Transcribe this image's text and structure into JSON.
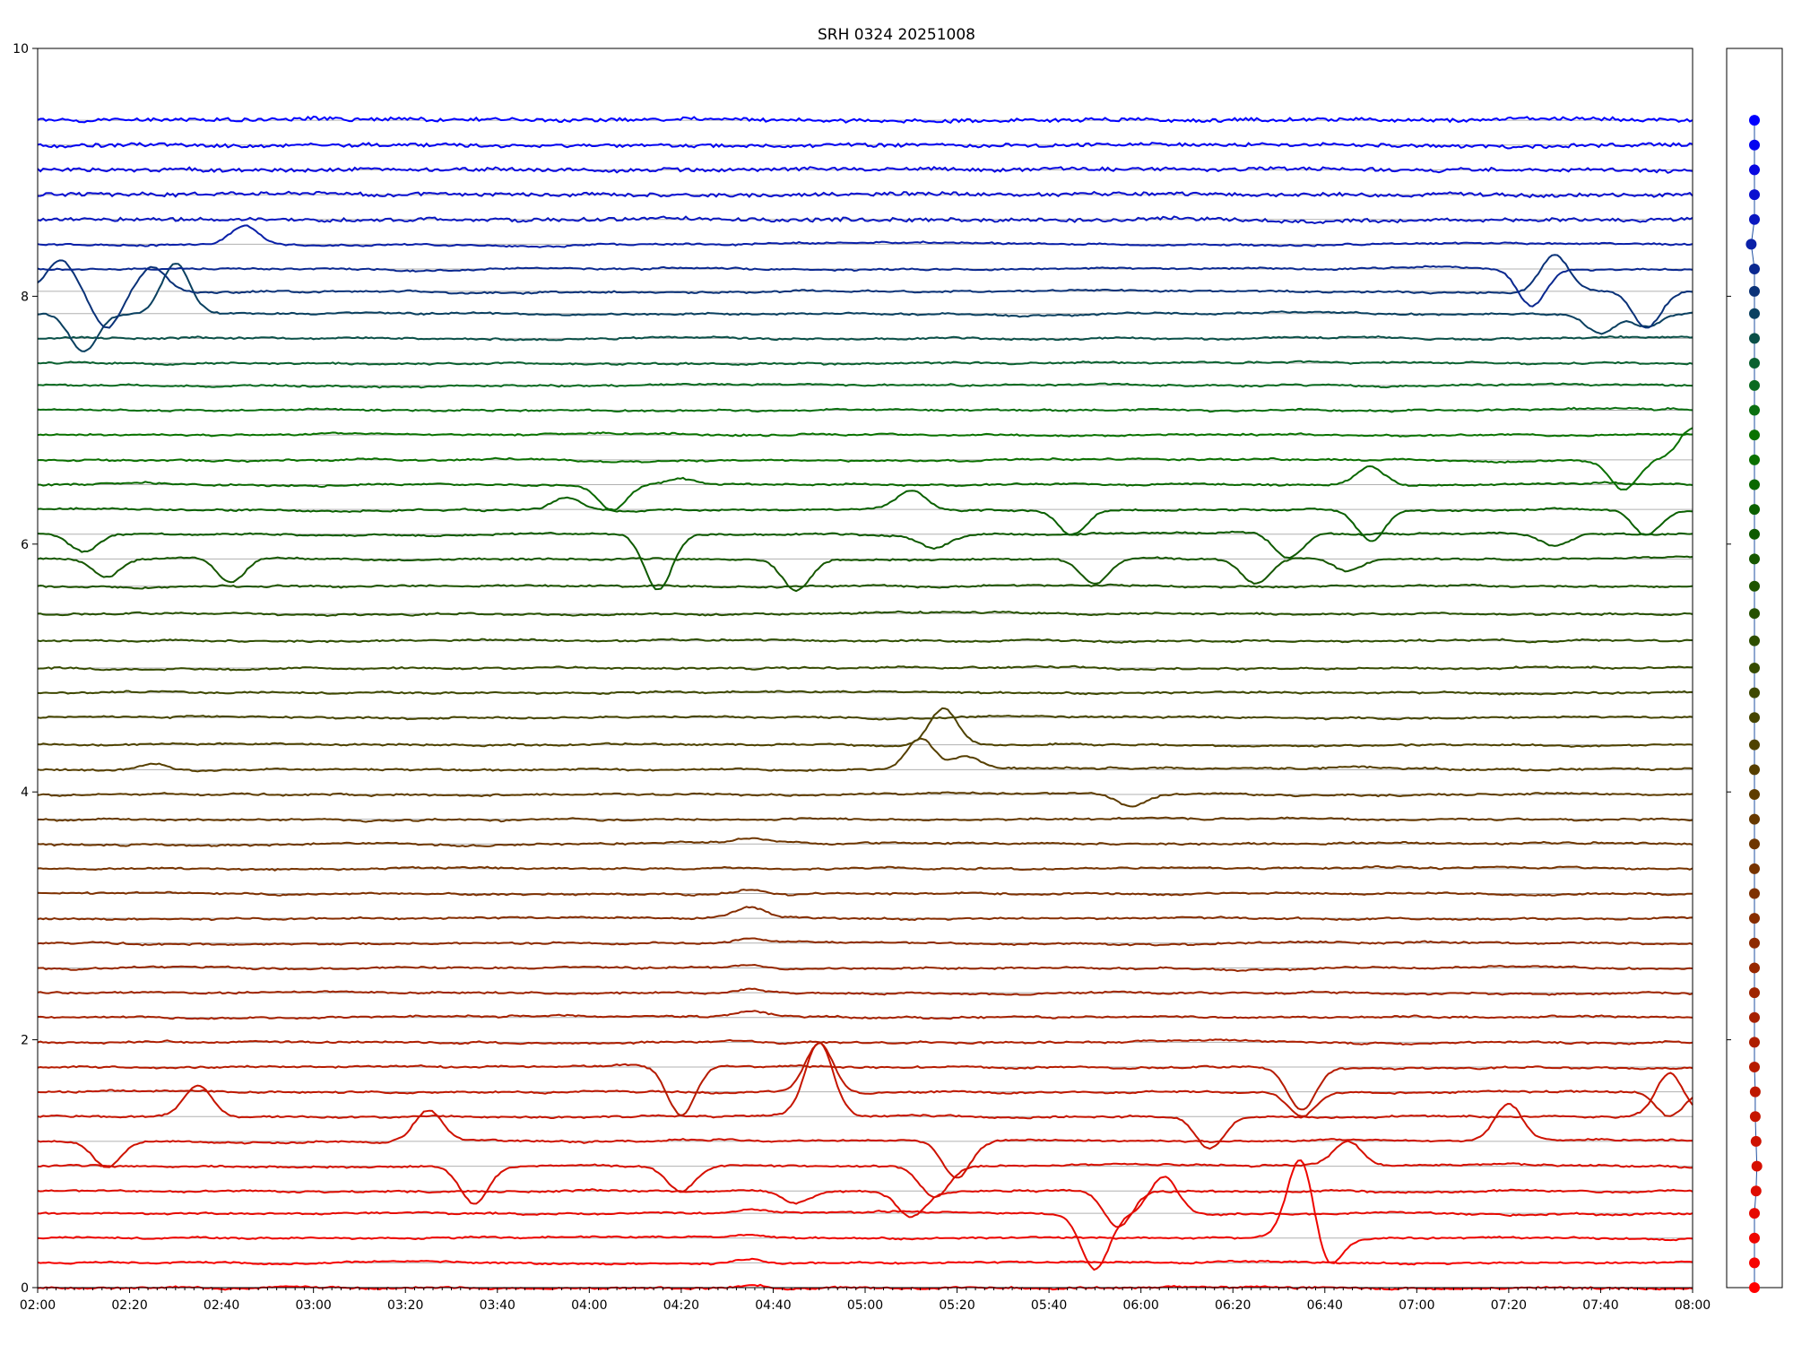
{
  "chart_data": {
    "type": "line",
    "title": "SRH 0324 20251008",
    "xlabel": "",
    "ylabel": "",
    "xlim": [
      "02:00",
      "08:00"
    ],
    "ylim": [
      0,
      10
    ],
    "x_tick_labels": [
      "02:00",
      "02:20",
      "02:40",
      "03:00",
      "03:20",
      "03:40",
      "04:00",
      "04:20",
      "04:40",
      "05:00",
      "05:20",
      "05:40",
      "06:00",
      "06:20",
      "06:40",
      "07:00",
      "07:20",
      "07:40",
      "08:00"
    ],
    "y_tick_labels": [
      "0",
      "2",
      "4",
      "6",
      "8",
      "10"
    ],
    "y_tick_values": [
      0,
      2,
      4,
      6,
      8,
      10
    ],
    "grid": "horizontal lines at each series baseline",
    "legend": "none",
    "series_count": 48,
    "series_spacing": 0.2,
    "side_panel": "colored dot per series at its baseline offset, connected by a thin line",
    "color_start": "#ff0000",
    "color_mid": "#008000",
    "color_end": "#0000ff",
    "series": [
      {
        "index": 0,
        "baseline": 0.0,
        "color": "#ff0000",
        "panel_offset": 0.0,
        "events": [
          {
            "t": "04:35",
            "amp": 0.02
          }
        ]
      },
      {
        "index": 1,
        "baseline": 0.2,
        "color": "#f60300",
        "panel_offset": 0.0,
        "events": [
          {
            "t": "04:35",
            "amp": 0.03
          }
        ]
      },
      {
        "index": 2,
        "baseline": 0.4,
        "color": "#ee0600",
        "panel_offset": 0.0,
        "events": [
          {
            "t": "04:35",
            "amp": 0.02
          },
          {
            "t": "06:35",
            "amp": 0.7
          },
          {
            "t": "06:40",
            "amp": -0.3
          }
        ]
      },
      {
        "index": 3,
        "baseline": 0.6,
        "color": "#e60900",
        "panel_offset": 0.0,
        "events": [
          {
            "t": "04:35",
            "amp": 0.03
          },
          {
            "t": "05:50",
            "amp": -0.45
          },
          {
            "t": "06:05",
            "amp": 0.3
          }
        ]
      },
      {
        "index": 4,
        "baseline": 0.78,
        "color": "#de0c00",
        "panel_offset": 0.02,
        "events": [
          {
            "t": "04:45",
            "amp": -0.1
          },
          {
            "t": "05:10",
            "amp": -0.2
          },
          {
            "t": "05:55",
            "amp": -0.3
          }
        ]
      },
      {
        "index": 5,
        "baseline": 0.98,
        "color": "#d60f00",
        "panel_offset": 0.03,
        "events": [
          {
            "t": "03:35",
            "amp": -0.3
          },
          {
            "t": "04:20",
            "amp": -0.2
          },
          {
            "t": "05:15",
            "amp": -0.25
          },
          {
            "t": "06:45",
            "amp": 0.2
          }
        ]
      },
      {
        "index": 6,
        "baseline": 1.18,
        "color": "#ce1200",
        "panel_offset": 0.02,
        "events": [
          {
            "t": "02:15",
            "amp": -0.2
          },
          {
            "t": "03:25",
            "amp": 0.25
          },
          {
            "t": "05:20",
            "amp": -0.3
          },
          {
            "t": "07:20",
            "amp": 0.3
          }
        ]
      },
      {
        "index": 7,
        "baseline": 1.38,
        "color": "#c61500",
        "panel_offset": 0.01,
        "events": [
          {
            "t": "02:35",
            "amp": 0.25
          },
          {
            "t": "04:50",
            "amp": 0.6
          },
          {
            "t": "06:15",
            "amp": -0.25
          },
          {
            "t": "07:55",
            "amp": 0.35
          }
        ]
      },
      {
        "index": 8,
        "baseline": 1.58,
        "color": "#be1800",
        "panel_offset": 0.01,
        "events": [
          {
            "t": "04:50",
            "amp": 0.4
          },
          {
            "t": "06:35",
            "amp": -0.2
          },
          {
            "t": "07:55",
            "amp": -0.2
          }
        ]
      },
      {
        "index": 9,
        "baseline": 1.78,
        "color": "#b61b00",
        "panel_offset": 0.0,
        "events": [
          {
            "t": "04:20",
            "amp": -0.4
          },
          {
            "t": "06:35",
            "amp": -0.35
          }
        ]
      },
      {
        "index": 10,
        "baseline": 1.98,
        "color": "#ae1e00",
        "panel_offset": 0.0,
        "events": [
          {
            "t": "04:35",
            "amp": 0.02
          }
        ]
      },
      {
        "index": 11,
        "baseline": 2.18,
        "color": "#a62100",
        "panel_offset": 0.0,
        "events": [
          {
            "t": "04:35",
            "amp": 0.03
          }
        ]
      },
      {
        "index": 12,
        "baseline": 2.38,
        "color": "#9e2400",
        "panel_offset": 0.0,
        "events": [
          {
            "t": "04:35",
            "amp": 0.03
          }
        ]
      },
      {
        "index": 13,
        "baseline": 2.58,
        "color": "#962700",
        "panel_offset": 0.0,
        "events": [
          {
            "t": "04:35",
            "amp": 0.03
          }
        ]
      },
      {
        "index": 14,
        "baseline": 2.78,
        "color": "#8e2a00",
        "panel_offset": 0.0,
        "events": [
          {
            "t": "04:35",
            "amp": 0.03
          }
        ]
      },
      {
        "index": 15,
        "baseline": 2.98,
        "color": "#862d00",
        "panel_offset": 0.0,
        "events": [
          {
            "t": "04:35",
            "amp": 0.08
          }
        ]
      },
      {
        "index": 16,
        "baseline": 3.18,
        "color": "#7e3000",
        "panel_offset": 0.0,
        "events": [
          {
            "t": "04:35",
            "amp": 0.04
          }
        ]
      },
      {
        "index": 17,
        "baseline": 3.38,
        "color": "#763300",
        "panel_offset": 0.0,
        "events": []
      },
      {
        "index": 18,
        "baseline": 3.58,
        "color": "#6e3600",
        "panel_offset": 0.0,
        "events": [
          {
            "t": "04:35",
            "amp": 0.03
          }
        ]
      },
      {
        "index": 19,
        "baseline": 3.78,
        "color": "#663900",
        "panel_offset": 0.0,
        "events": []
      },
      {
        "index": 20,
        "baseline": 3.98,
        "color": "#5e3c00",
        "panel_offset": 0.0,
        "events": [
          {
            "t": "05:58",
            "amp": -0.1
          }
        ]
      },
      {
        "index": 21,
        "baseline": 4.18,
        "color": "#563f00",
        "panel_offset": 0.0,
        "events": [
          {
            "t": "02:25",
            "amp": 0.05
          },
          {
            "t": "05:12",
            "amp": 0.25
          },
          {
            "t": "05:22",
            "amp": 0.1
          }
        ]
      },
      {
        "index": 22,
        "baseline": 4.38,
        "color": "#4e4200",
        "panel_offset": 0.0,
        "events": [
          {
            "t": "05:17",
            "amp": 0.3
          }
        ]
      },
      {
        "index": 23,
        "baseline": 4.6,
        "color": "#464500",
        "panel_offset": 0.0,
        "events": []
      },
      {
        "index": 24,
        "baseline": 4.8,
        "color": "#3e4800",
        "panel_offset": 0.0,
        "events": []
      },
      {
        "index": 25,
        "baseline": 5.0,
        "color": "#364b00",
        "panel_offset": 0.0,
        "events": []
      },
      {
        "index": 26,
        "baseline": 5.22,
        "color": "#2e4e00",
        "panel_offset": 0.0,
        "events": []
      },
      {
        "index": 27,
        "baseline": 5.44,
        "color": "#265100",
        "panel_offset": 0.0,
        "events": []
      },
      {
        "index": 28,
        "baseline": 5.66,
        "color": "#1e5400",
        "panel_offset": 0.0,
        "events": []
      },
      {
        "index": 29,
        "baseline": 5.88,
        "color": "#165700",
        "panel_offset": 0.0,
        "events": [
          {
            "t": "02:15",
            "amp": -0.15
          },
          {
            "t": "02:42",
            "amp": -0.2
          },
          {
            "t": "04:45",
            "amp": -0.25
          },
          {
            "t": "05:50",
            "amp": -0.2
          },
          {
            "t": "06:25",
            "amp": -0.2
          },
          {
            "t": "06:45",
            "amp": -0.1
          }
        ]
      },
      {
        "index": 30,
        "baseline": 6.08,
        "color": "#0e5a00",
        "panel_offset": 0.0,
        "events": [
          {
            "t": "02:10",
            "amp": -0.15
          },
          {
            "t": "04:15",
            "amp": -0.45
          },
          {
            "t": "05:15",
            "amp": -0.1
          },
          {
            "t": "06:32",
            "amp": -0.2
          },
          {
            "t": "07:30",
            "amp": -0.1
          }
        ]
      },
      {
        "index": 31,
        "baseline": 6.28,
        "color": "#0a6000",
        "panel_offset": 0.0,
        "events": [
          {
            "t": "03:55",
            "amp": 0.1
          },
          {
            "t": "05:10",
            "amp": 0.15
          },
          {
            "t": "05:45",
            "amp": -0.2
          },
          {
            "t": "06:50",
            "amp": -0.25
          },
          {
            "t": "07:50",
            "amp": -0.2
          }
        ]
      },
      {
        "index": 32,
        "baseline": 6.48,
        "color": "#0a6800",
        "panel_offset": 0.0,
        "events": [
          {
            "t": "04:05",
            "amp": -0.2
          },
          {
            "t": "04:20",
            "amp": 0.05
          },
          {
            "t": "06:50",
            "amp": 0.15
          }
        ]
      },
      {
        "index": 33,
        "baseline": 6.68,
        "color": "#0a7000",
        "panel_offset": 0.0,
        "events": [
          {
            "t": "07:45",
            "amp": -0.25
          },
          {
            "t": "08:00",
            "amp": 0.25
          }
        ]
      },
      {
        "index": 34,
        "baseline": 6.88,
        "color": "#0a7300",
        "panel_offset": 0.0,
        "events": []
      },
      {
        "index": 35,
        "baseline": 7.08,
        "color": "#0a6f10",
        "panel_offset": 0.0,
        "events": []
      },
      {
        "index": 36,
        "baseline": 7.28,
        "color": "#0a6a20",
        "panel_offset": 0.0,
        "events": []
      },
      {
        "index": 37,
        "baseline": 7.46,
        "color": "#0a6030",
        "panel_offset": 0.0,
        "events": []
      },
      {
        "index": 38,
        "baseline": 7.66,
        "color": "#0a5048",
        "panel_offset": 0.0,
        "events": []
      },
      {
        "index": 39,
        "baseline": 7.86,
        "color": "#0a4060",
        "panel_offset": 0.0,
        "events": [
          {
            "t": "02:10",
            "amp": -0.3
          },
          {
            "t": "02:30",
            "amp": 0.4
          },
          {
            "t": "07:40",
            "amp": -0.15
          },
          {
            "t": "07:50",
            "amp": -0.1
          }
        ]
      },
      {
        "index": 40,
        "baseline": 8.04,
        "color": "#0a3278",
        "panel_offset": 0.0,
        "events": [
          {
            "t": "02:05",
            "amp": 0.25
          },
          {
            "t": "02:15",
            "amp": -0.3
          },
          {
            "t": "02:25",
            "amp": 0.2
          },
          {
            "t": "07:30",
            "amp": 0.3
          },
          {
            "t": "07:50",
            "amp": -0.3
          }
        ]
      },
      {
        "index": 41,
        "baseline": 8.22,
        "color": "#0a2890",
        "panel_offset": 0.0,
        "events": [
          {
            "t": "07:25",
            "amp": -0.3
          }
        ]
      },
      {
        "index": 42,
        "baseline": 8.42,
        "color": "#0a20a8",
        "panel_offset": -0.04,
        "events": [
          {
            "t": "02:45",
            "amp": 0.15
          }
        ]
      },
      {
        "index": 43,
        "baseline": 8.62,
        "color": "#0a18c0",
        "panel_offset": 0.0,
        "events": []
      },
      {
        "index": 44,
        "baseline": 8.82,
        "color": "#0a10d0",
        "panel_offset": 0.0,
        "events": []
      },
      {
        "index": 45,
        "baseline": 9.02,
        "color": "#0808e0",
        "panel_offset": 0.0,
        "events": []
      },
      {
        "index": 46,
        "baseline": 9.22,
        "color": "#0404f0",
        "panel_offset": 0.0,
        "events": []
      },
      {
        "index": 47,
        "baseline": 9.42,
        "color": "#0000ff",
        "panel_offset": 0.0,
        "events": []
      }
    ]
  }
}
